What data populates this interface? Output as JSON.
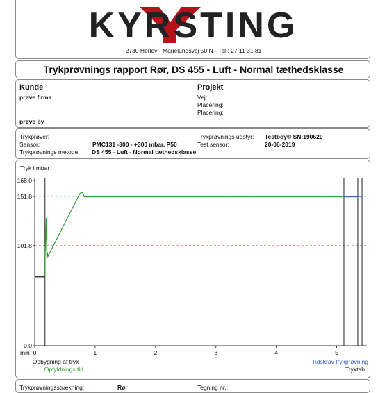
{
  "header": {
    "logo_text": "KYRSTING",
    "address": "2730 Herlev - Marielundsvej 50 N - Tel : 27 11 31 81"
  },
  "title": "Trykprøvnings rapport Rør, DS 455 - Luft - Normal tæthedsklasse",
  "customer": {
    "heading": "Kunde",
    "firm": "prøve  firma",
    "city": "prøve by"
  },
  "project": {
    "heading": "Projekt",
    "road_label": "Vej:",
    "placement_label_1": "Placering:",
    "placement_label_2": "Placering:"
  },
  "test": {
    "tester_label": "Trykprøver:",
    "sensor_label": "Sensor:",
    "sensor_value": "PMC131  -300 - +300 mbar, P50",
    "method_label": "Trykprøvnings metode:",
    "method_value": "DS 455 - Luft - Normal tæthedsklasse",
    "equipment_label": "Trykprøvnings udstyr:",
    "equipment_value": "Testboy® SN:190620",
    "test_sensor_label": "Test sensor:",
    "test_sensor_value": "20-06-2019"
  },
  "chart_data": {
    "type": "line",
    "ylabel": "Tryk i mbar",
    "xlabel": "min",
    "ylim": [
      0,
      168
    ],
    "xlim": [
      0,
      5.5
    ],
    "y_ticks": [
      "168,0",
      "151,8",
      "101,8",
      "0,0"
    ],
    "x_ticks": [
      "0",
      "1",
      "2",
      "3",
      "4",
      "5"
    ],
    "reference_lines": [
      {
        "value": 151.8,
        "color": "#6cc56c",
        "style": "dashed"
      },
      {
        "value": 101.8,
        "color": "#e06060",
        "style": "dashed"
      }
    ],
    "vertical_markers": [
      0.17,
      5.12,
      5.35,
      5.42
    ],
    "series": [
      {
        "color": "#2e9a2e",
        "x": [
          0,
          0.17,
          0.17,
          0.19,
          0.2,
          0.21,
          0.22,
          0.5,
          0.75,
          0.79,
          0.82,
          0.9,
          1.2,
          2,
          3,
          4,
          5,
          5.35
        ],
        "y": [
          70,
          70,
          88,
          130,
          88,
          95,
          91,
          125,
          155,
          156,
          151.5,
          151.3,
          151.3,
          151.3,
          151.3,
          151.3,
          151.3,
          151.3
        ]
      },
      {
        "color": "#3a5bc7",
        "x": [
          5.12,
          5.42
        ],
        "y": [
          151.6,
          151.6
        ]
      }
    ],
    "annotations": [
      {
        "text": "Opbygning af tryk",
        "color": "#111"
      },
      {
        "text": "Opfyldnings tid",
        "color": "#2e9a2e"
      },
      {
        "text": "Tidskrav trykprøvning",
        "color": "#3a5bc7"
      },
      {
        "text": "Tryktab",
        "color": "#111"
      }
    ]
  },
  "footer": {
    "left_label": "Trykprøvningsstrækning:",
    "left_value": "Rør",
    "right_label": "Tegning nr.:"
  }
}
